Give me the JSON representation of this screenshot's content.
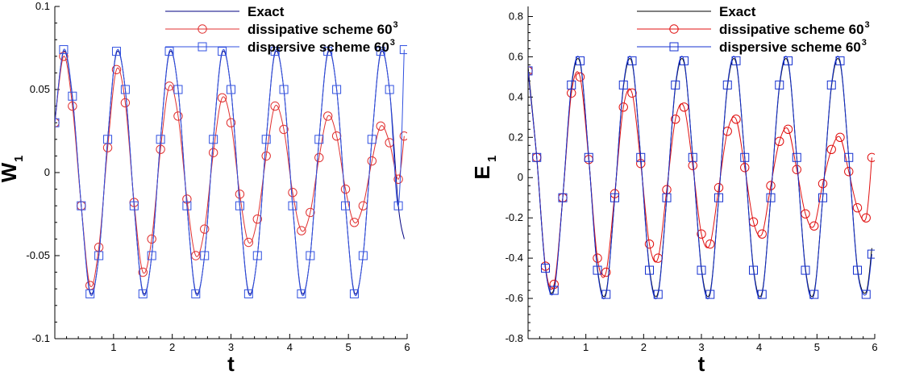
{
  "chart_data": [
    {
      "type": "line",
      "id": "w1",
      "xlabel": "t",
      "ylabel": {
        "main": "W",
        "subscript": "1"
      },
      "xlim": [
        0,
        6
      ],
      "ylim": [
        -0.1,
        0.1
      ],
      "xticks": [
        1,
        2,
        3,
        4,
        5,
        6
      ],
      "xtick_labels": [
        "1",
        "2",
        "3",
        "4",
        "5",
        "6"
      ],
      "yticks": [
        -0.1,
        -0.05,
        0,
        0.05,
        0.1
      ],
      "ytick_labels": [
        "-0.1",
        "-0.05",
        "0",
        "0.05",
        "0.1"
      ],
      "grid": false,
      "legend_placement": "top-center",
      "series": [
        {
          "name": "Exact",
          "color": "#000080",
          "marker": "none",
          "legend_sup": "",
          "x": [
            0,
            0.15,
            0.3,
            0.45,
            0.6,
            0.75,
            0.9,
            1.05,
            1.2,
            1.35,
            1.5,
            1.65,
            1.8,
            1.95,
            2.1,
            2.25,
            2.4,
            2.55,
            2.7,
            2.85,
            3.0,
            3.15,
            3.3,
            3.45,
            3.6,
            3.75,
            3.9,
            4.05,
            4.2,
            4.35,
            4.5,
            4.65,
            4.8,
            4.95,
            5.1,
            5.25,
            5.4,
            5.55,
            5.7,
            5.85,
            5.95
          ],
          "y": [
            0.03,
            0.073,
            0.045,
            -0.02,
            -0.072,
            -0.05,
            0.02,
            0.072,
            0.05,
            -0.02,
            -0.072,
            -0.05,
            0.02,
            0.072,
            0.05,
            -0.02,
            -0.072,
            -0.05,
            0.02,
            0.072,
            0.05,
            -0.02,
            -0.072,
            -0.05,
            0.02,
            0.072,
            0.05,
            -0.02,
            -0.072,
            -0.05,
            0.02,
            0.072,
            0.05,
            -0.02,
            -0.072,
            -0.05,
            0.02,
            0.072,
            0.05,
            -0.02,
            -0.04
          ]
        },
        {
          "name": "dissipative scheme 60",
          "color": "#e03030",
          "marker": "circle",
          "legend_sup": "3",
          "x": [
            0,
            0.15,
            0.3,
            0.45,
            0.6,
            0.75,
            0.9,
            1.05,
            1.2,
            1.35,
            1.5,
            1.65,
            1.8,
            1.95,
            2.1,
            2.25,
            2.4,
            2.55,
            2.7,
            2.85,
            3.0,
            3.15,
            3.3,
            3.45,
            3.6,
            3.75,
            3.9,
            4.05,
            4.2,
            4.35,
            4.5,
            4.65,
            4.8,
            4.95,
            5.1,
            5.25,
            5.4,
            5.55,
            5.7,
            5.85,
            5.95
          ],
          "y": [
            0.03,
            0.07,
            0.04,
            -0.02,
            -0.068,
            -0.045,
            0.015,
            0.062,
            0.042,
            -0.018,
            -0.06,
            -0.04,
            0.014,
            0.052,
            0.034,
            -0.016,
            -0.05,
            -0.034,
            0.012,
            0.045,
            0.03,
            -0.013,
            -0.042,
            -0.028,
            0.01,
            0.04,
            0.026,
            -0.012,
            -0.035,
            -0.024,
            0.009,
            0.034,
            0.022,
            -0.01,
            -0.03,
            -0.02,
            0.007,
            0.028,
            0.018,
            -0.004,
            0.022
          ]
        },
        {
          "name": "dispersive scheme 60",
          "color": "#3050e0",
          "marker": "square",
          "legend_sup": "3",
          "x": [
            0,
            0.15,
            0.3,
            0.45,
            0.6,
            0.75,
            0.9,
            1.05,
            1.2,
            1.35,
            1.5,
            1.65,
            1.8,
            1.95,
            2.1,
            2.25,
            2.4,
            2.55,
            2.7,
            2.85,
            3.0,
            3.15,
            3.3,
            3.45,
            3.6,
            3.75,
            3.9,
            4.05,
            4.2,
            4.35,
            4.5,
            4.65,
            4.8,
            4.95,
            5.1,
            5.25,
            5.4,
            5.55,
            5.7,
            5.85,
            5.95
          ],
          "y": [
            0.03,
            0.074,
            0.046,
            -0.02,
            -0.073,
            -0.05,
            0.02,
            0.073,
            0.05,
            -0.02,
            -0.073,
            -0.05,
            0.02,
            0.073,
            0.05,
            -0.02,
            -0.073,
            -0.05,
            0.02,
            0.073,
            0.05,
            -0.02,
            -0.073,
            -0.05,
            0.02,
            0.073,
            0.05,
            -0.02,
            -0.073,
            -0.05,
            0.02,
            0.073,
            0.05,
            -0.02,
            -0.073,
            -0.05,
            0.02,
            0.073,
            0.05,
            -0.02,
            0.074
          ]
        }
      ]
    },
    {
      "type": "line",
      "id": "e1",
      "xlabel": "t",
      "ylabel": {
        "main": "E",
        "subscript": "1"
      },
      "xlim": [
        0,
        6
      ],
      "ylim": [
        -0.8,
        0.85
      ],
      "xticks": [
        1,
        2,
        3,
        4,
        5,
        6
      ],
      "xtick_labels": [
        "1",
        "2",
        "3",
        "4",
        "5",
        "6"
      ],
      "yticks": [
        -0.8,
        -0.6,
        -0.4,
        -0.2,
        0,
        0.2,
        0.4,
        0.6,
        0.8
      ],
      "ytick_labels": [
        "-0.8",
        "-0.6",
        "-0.4",
        "-0.2",
        "0",
        "0.2",
        "0.4",
        "0.6",
        "0.8"
      ],
      "grid": false,
      "legend_placement": "top-center",
      "series": [
        {
          "name": "Exact",
          "color": "#000000",
          "marker": "none",
          "legend_sup": "",
          "x": [
            0,
            0.15,
            0.3,
            0.45,
            0.6,
            0.75,
            0.9,
            1.05,
            1.2,
            1.35,
            1.5,
            1.65,
            1.8,
            1.95,
            2.1,
            2.25,
            2.4,
            2.55,
            2.7,
            2.85,
            3.0,
            3.15,
            3.3,
            3.45,
            3.6,
            3.75,
            3.9,
            4.05,
            4.2,
            4.35,
            4.5,
            4.65,
            4.8,
            4.95,
            5.1,
            5.25,
            5.4,
            5.55,
            5.7,
            5.85,
            5.95
          ],
          "y": [
            0.55,
            0.1,
            -0.45,
            -0.55,
            -0.1,
            0.45,
            0.57,
            0.1,
            -0.45,
            -0.57,
            -0.1,
            0.45,
            0.57,
            0.1,
            -0.45,
            -0.57,
            -0.1,
            0.45,
            0.57,
            0.1,
            -0.45,
            -0.57,
            -0.1,
            0.45,
            0.57,
            0.1,
            -0.45,
            -0.57,
            -0.1,
            0.45,
            0.57,
            0.1,
            -0.45,
            -0.57,
            -0.1,
            0.45,
            0.57,
            0.1,
            -0.45,
            -0.57,
            -0.35
          ]
        },
        {
          "name": "dissipative scheme 60",
          "color": "#e01010",
          "marker": "circle",
          "legend_sup": "3",
          "x": [
            0,
            0.15,
            0.3,
            0.45,
            0.6,
            0.75,
            0.9,
            1.05,
            1.2,
            1.35,
            1.5,
            1.65,
            1.8,
            1.95,
            2.1,
            2.25,
            2.4,
            2.55,
            2.7,
            2.85,
            3.0,
            3.15,
            3.3,
            3.45,
            3.6,
            3.75,
            3.9,
            4.05,
            4.2,
            4.35,
            4.5,
            4.65,
            4.8,
            4.95,
            5.1,
            5.25,
            5.4,
            5.55,
            5.7,
            5.85,
            5.95
          ],
          "y": [
            0.53,
            0.1,
            -0.44,
            -0.53,
            -0.1,
            0.42,
            0.5,
            0.09,
            -0.4,
            -0.47,
            -0.08,
            0.35,
            0.42,
            0.07,
            -0.33,
            -0.4,
            -0.06,
            0.29,
            0.35,
            0.06,
            -0.28,
            -0.33,
            -0.05,
            0.23,
            0.29,
            0.05,
            -0.22,
            -0.28,
            -0.04,
            0.18,
            0.24,
            0.04,
            -0.18,
            -0.24,
            -0.03,
            0.14,
            0.2,
            0.03,
            -0.15,
            -0.2,
            0.1
          ]
        },
        {
          "name": "dispersive scheme 60",
          "color": "#1530d0",
          "marker": "square",
          "legend_sup": "3",
          "x": [
            0,
            0.15,
            0.3,
            0.45,
            0.6,
            0.75,
            0.9,
            1.05,
            1.2,
            1.35,
            1.5,
            1.65,
            1.8,
            1.95,
            2.1,
            2.25,
            2.4,
            2.55,
            2.7,
            2.85,
            3.0,
            3.15,
            3.3,
            3.45,
            3.6,
            3.75,
            3.9,
            4.05,
            4.2,
            4.35,
            4.5,
            4.65,
            4.8,
            4.95,
            5.1,
            5.25,
            5.4,
            5.55,
            5.7,
            5.85,
            5.95
          ],
          "y": [
            0.53,
            0.1,
            -0.45,
            -0.56,
            -0.1,
            0.46,
            0.58,
            0.1,
            -0.46,
            -0.58,
            -0.1,
            0.46,
            0.58,
            0.1,
            -0.46,
            -0.58,
            -0.1,
            0.46,
            0.58,
            0.1,
            -0.46,
            -0.58,
            -0.1,
            0.46,
            0.58,
            0.1,
            -0.46,
            -0.58,
            -0.1,
            0.46,
            0.58,
            0.1,
            -0.46,
            -0.58,
            -0.1,
            0.46,
            0.58,
            0.1,
            -0.46,
            -0.58,
            -0.38
          ]
        }
      ]
    }
  ]
}
